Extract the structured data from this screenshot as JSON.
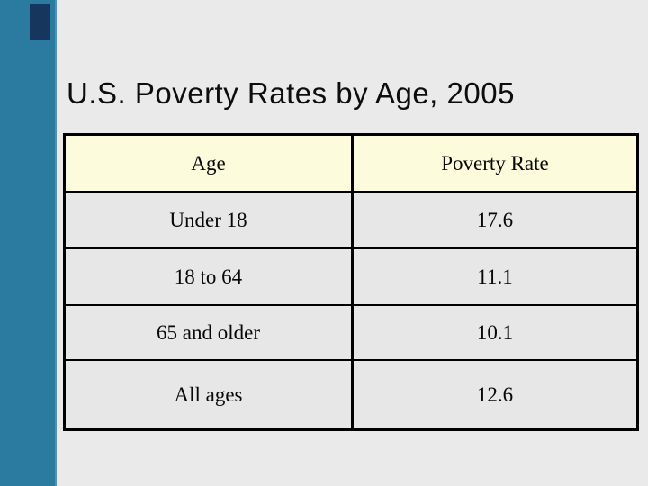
{
  "slide": {
    "title": "U.S. Poverty Rates by Age, 2005"
  },
  "table": {
    "columns": [
      "Age",
      "Poverty Rate"
    ],
    "rows": [
      {
        "age": "Under 18",
        "rate": "17.6"
      },
      {
        "age": "18 to 64",
        "rate": "11.1"
      },
      {
        "age": "65 and older",
        "rate": "10.1"
      },
      {
        "age": "All ages",
        "rate": "12.6"
      }
    ]
  },
  "colors": {
    "slide_background": "#eaeaea",
    "sidebar_teal": "#2b7ba1",
    "accent_navy": "#16365d",
    "header_cream": "#fcfcdc",
    "row_gray": "#e7e7e7",
    "border_black": "#000000",
    "text_black": "#0d0d0d"
  },
  "chart_data": {
    "type": "table",
    "title": "U.S. Poverty Rates by Age, 2005",
    "columns": [
      "Age",
      "Poverty Rate"
    ],
    "rows": [
      [
        "Under 18",
        17.6
      ],
      [
        "18 to 64",
        11.1
      ],
      [
        "65 and older",
        10.1
      ],
      [
        "All ages",
        12.6
      ]
    ]
  }
}
